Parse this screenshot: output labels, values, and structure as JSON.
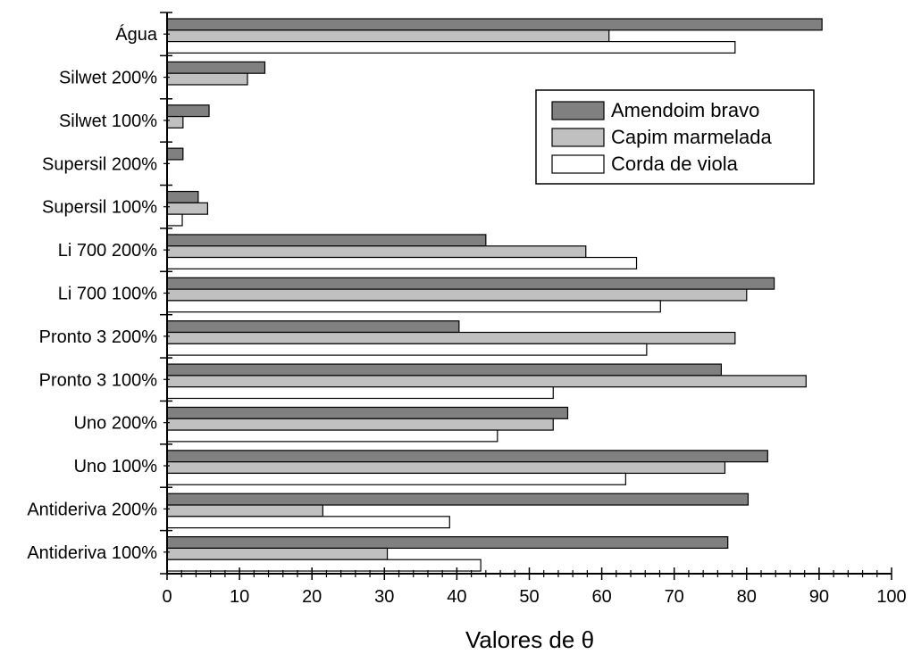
{
  "chart_data": {
    "type": "bar",
    "orientation": "horizontal",
    "xlabel": "Valores de θ",
    "ylabel": "",
    "title": "",
    "xlim": [
      0,
      100
    ],
    "xticks": [
      "0",
      "10",
      "20",
      "30",
      "40",
      "50",
      "60",
      "70",
      "80",
      "90",
      "100"
    ],
    "categories": [
      "Água",
      "Silwet 200%",
      "Silwet 100%",
      "Supersil 200%",
      "Supersil 100%",
      "Li 700 200%",
      "Li 700 100%",
      "Pronto 3 200%",
      "Pronto 3 100%",
      "Uno 200%",
      "Uno 100%",
      "Antideriva 200%",
      "Antideriva 100%"
    ],
    "series": [
      {
        "name": "Amendoim bravo",
        "color": "#808080",
        "values": [
          90.4,
          13.5,
          5.8,
          2.2,
          4.3,
          44.0,
          83.8,
          40.3,
          76.5,
          55.3,
          82.9,
          80.2,
          77.4
        ]
      },
      {
        "name": "Capim marmelada",
        "color": "#c0c0c0",
        "values": [
          61.0,
          11.1,
          2.2,
          0,
          5.6,
          57.8,
          80.0,
          78.4,
          88.2,
          53.3,
          77.0,
          21.5,
          30.4
        ]
      },
      {
        "name": "Corda de viola",
        "color": "#ffffff",
        "values": [
          78.4,
          0,
          0,
          0,
          2.1,
          64.8,
          68.1,
          66.2,
          53.3,
          45.6,
          63.3,
          39.0,
          43.3
        ]
      }
    ],
    "legend": {
      "position": "top-right"
    },
    "grid": false
  }
}
